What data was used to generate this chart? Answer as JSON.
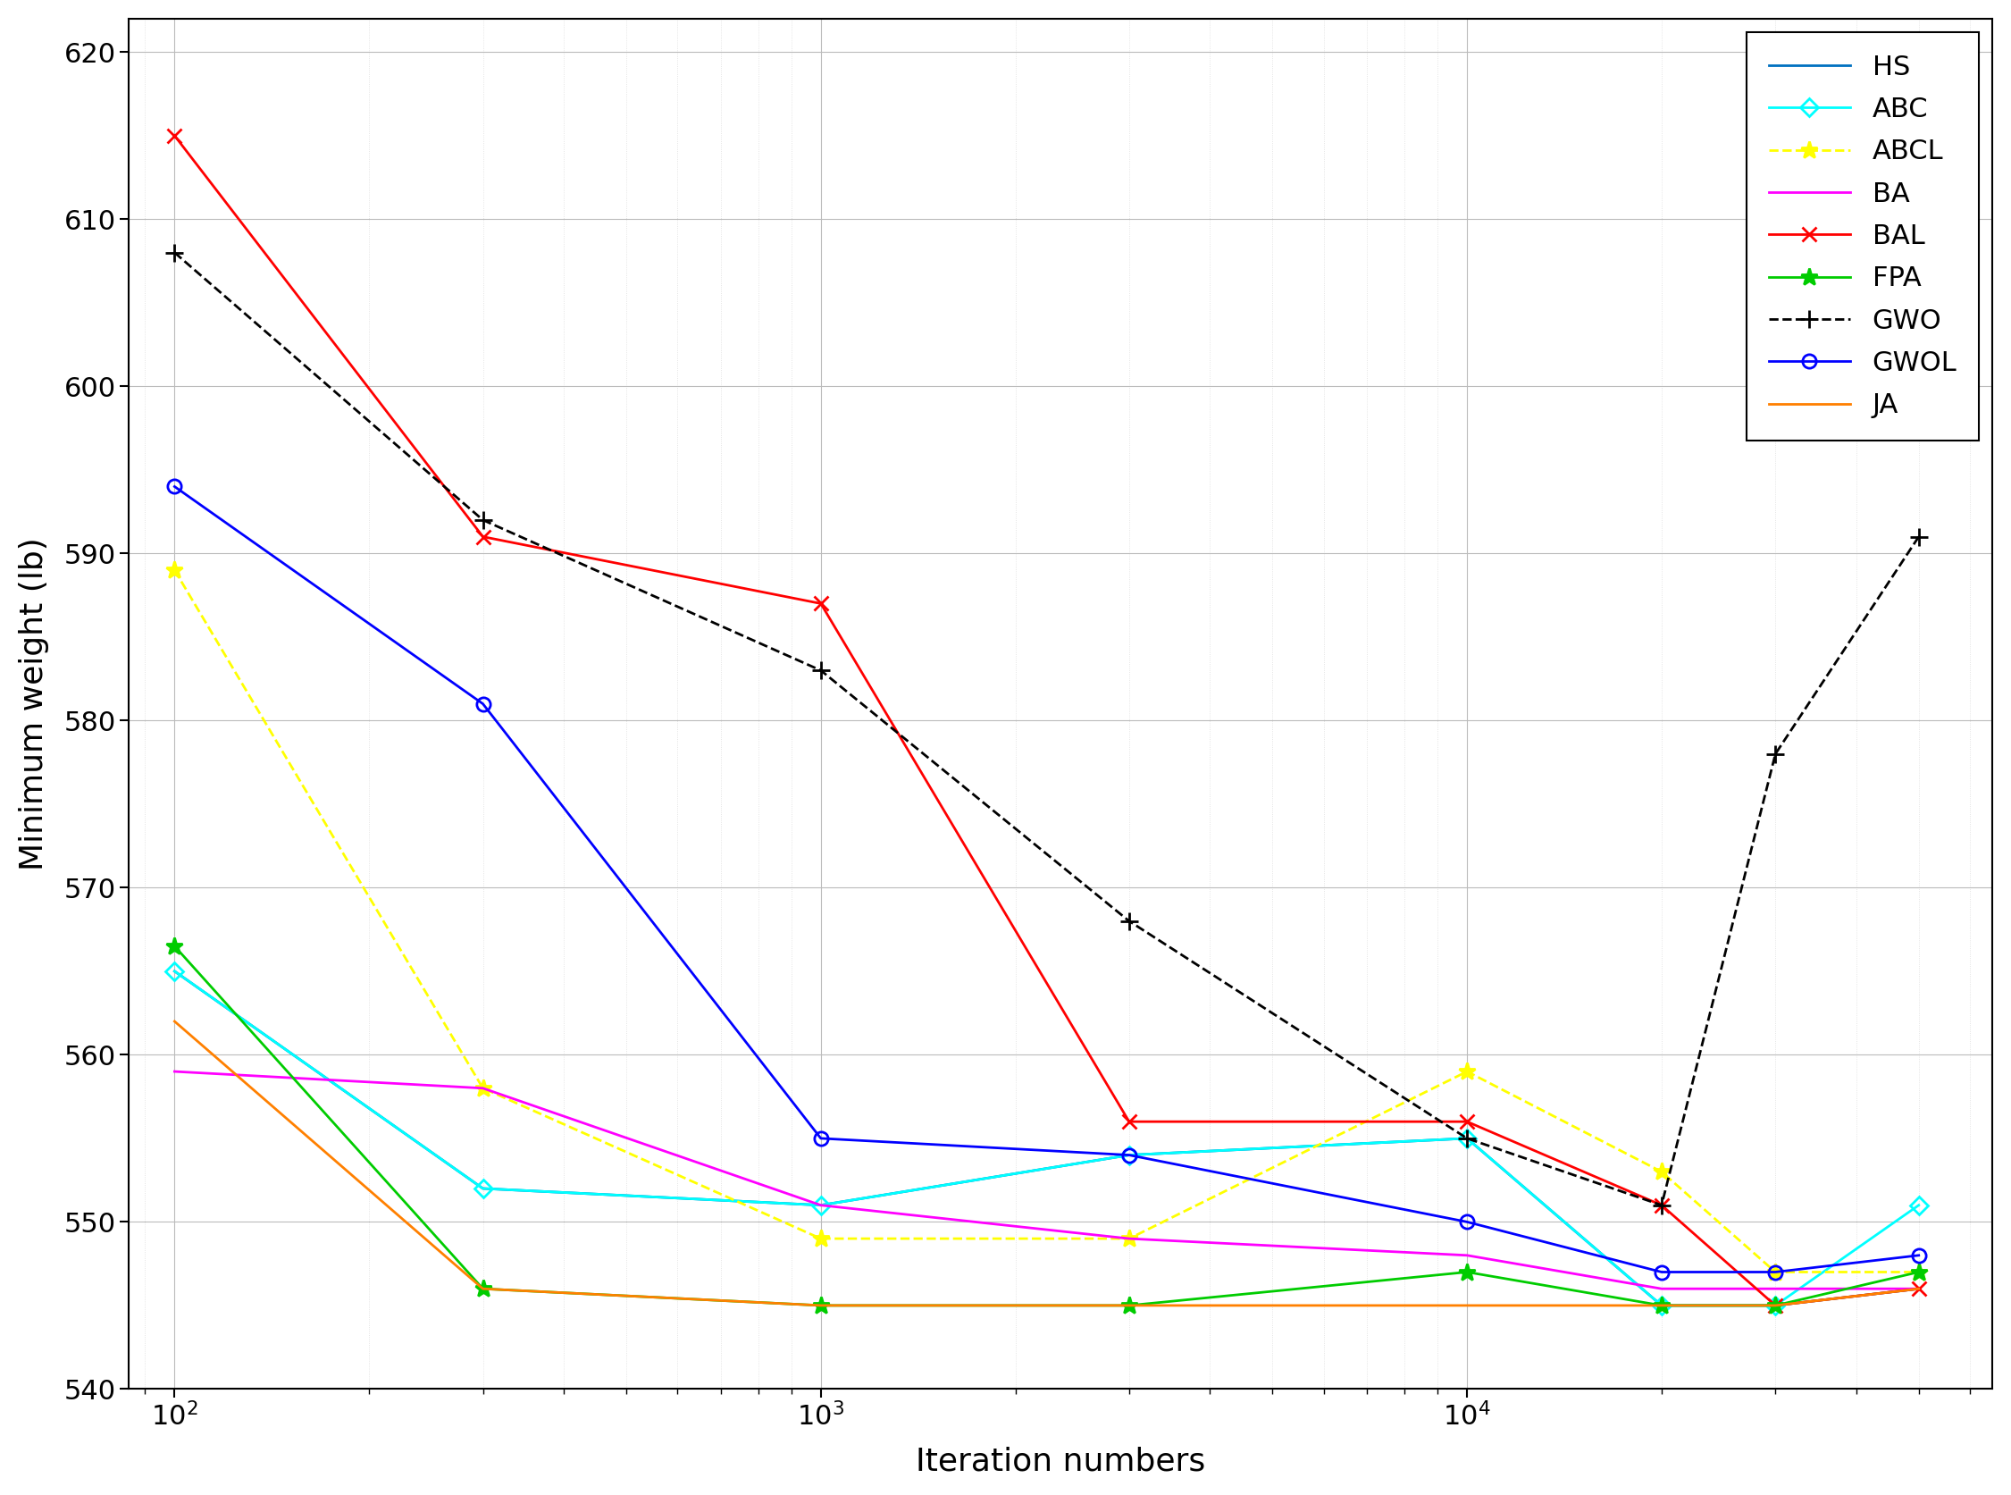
{
  "xlabel": "Iteration numbers",
  "ylabel": "Minimum weight (lb)",
  "ylim": [
    540,
    622
  ],
  "yticks": [
    540,
    550,
    560,
    570,
    580,
    590,
    600,
    610,
    620
  ],
  "series": {
    "HS": {
      "x": [
        100,
        300,
        1000,
        3000,
        10000,
        20000,
        30000,
        50000
      ],
      "y": [
        565.0,
        552.0,
        551.0,
        554.0,
        555.0,
        545.0,
        545.0,
        546.0
      ],
      "color": "#0070C0",
      "linestyle": "-",
      "marker": null,
      "markersize": 0,
      "linewidth": 2.0,
      "label": "HS",
      "hollow": false
    },
    "ABC": {
      "x": [
        100,
        300,
        1000,
        3000,
        10000,
        20000,
        30000,
        50000
      ],
      "y": [
        565.0,
        552.0,
        551.0,
        554.0,
        555.0,
        545.0,
        545.0,
        551.0
      ],
      "color": "#00FFFF",
      "linestyle": "-",
      "marker": "D",
      "markersize": 10,
      "linewidth": 2.0,
      "label": "ABC",
      "hollow": true
    },
    "ABCL": {
      "x": [
        100,
        300,
        1000,
        3000,
        10000,
        20000,
        30000,
        50000
      ],
      "y": [
        589.0,
        558.0,
        549.0,
        549.0,
        559.0,
        553.0,
        547.0,
        547.0
      ],
      "color": "#FFFF00",
      "linestyle": "--",
      "marker": "*",
      "markersize": 14,
      "linewidth": 2.0,
      "label": "ABCL",
      "hollow": false
    },
    "BA": {
      "x": [
        100,
        300,
        1000,
        3000,
        10000,
        20000,
        30000,
        50000
      ],
      "y": [
        559.0,
        558.0,
        551.0,
        549.0,
        548.0,
        546.0,
        546.0,
        546.0
      ],
      "color": "#FF00FF",
      "linestyle": "-",
      "marker": null,
      "markersize": 0,
      "linewidth": 2.0,
      "label": "BA",
      "hollow": false
    },
    "BAL": {
      "x": [
        100,
        300,
        1000,
        3000,
        10000,
        20000,
        30000,
        50000
      ],
      "y": [
        615.0,
        591.0,
        587.0,
        556.0,
        556.0,
        551.0,
        545.0,
        546.0
      ],
      "color": "#FF0000",
      "linestyle": "-",
      "marker": "x",
      "markersize": 12,
      "linewidth": 2.0,
      "label": "BAL",
      "hollow": false
    },
    "FPA": {
      "x": [
        100,
        300,
        1000,
        3000,
        10000,
        20000,
        30000,
        50000
      ],
      "y": [
        566.5,
        546.0,
        545.0,
        545.0,
        547.0,
        545.0,
        545.0,
        547.0
      ],
      "color": "#00CC00",
      "linestyle": "-",
      "marker": "*",
      "markersize": 14,
      "linewidth": 2.0,
      "label": "FPA",
      "hollow": false
    },
    "GWO": {
      "x": [
        100,
        300,
        1000,
        3000,
        10000,
        20000,
        30000,
        50000
      ],
      "y": [
        608.0,
        592.0,
        583.0,
        568.0,
        555.0,
        551.0,
        578.0,
        591.0
      ],
      "color": "#000000",
      "linestyle": "--",
      "marker": "+",
      "markersize": 14,
      "linewidth": 2.0,
      "label": "GWO",
      "hollow": false
    },
    "GWOL": {
      "x": [
        100,
        300,
        1000,
        3000,
        10000,
        20000,
        30000,
        50000
      ],
      "y": [
        594.0,
        581.0,
        555.0,
        554.0,
        550.0,
        547.0,
        547.0,
        548.0
      ],
      "color": "#0000FF",
      "linestyle": "-",
      "marker": "o",
      "markersize": 11,
      "linewidth": 2.0,
      "label": "GWOL",
      "hollow": true
    },
    "JA": {
      "x": [
        100,
        300,
        1000,
        3000,
        10000,
        20000,
        30000,
        50000
      ],
      "y": [
        562.0,
        546.0,
        545.0,
        545.0,
        545.0,
        545.0,
        545.0,
        546.0
      ],
      "color": "#FF8000",
      "linestyle": "-",
      "marker": null,
      "markersize": 0,
      "linewidth": 2.0,
      "label": "JA",
      "hollow": false
    }
  },
  "legend_order": [
    "HS",
    "ABC",
    "ABCL",
    "BA",
    "BAL",
    "FPA",
    "GWO",
    "GWOL",
    "JA"
  ],
  "major_grid_color": "#BBBBBB",
  "minor_grid_color": "#DDDDDD",
  "background_color": "#FFFFFF",
  "tick_fontsize": 22,
  "label_fontsize": 26,
  "legend_fontsize": 22
}
